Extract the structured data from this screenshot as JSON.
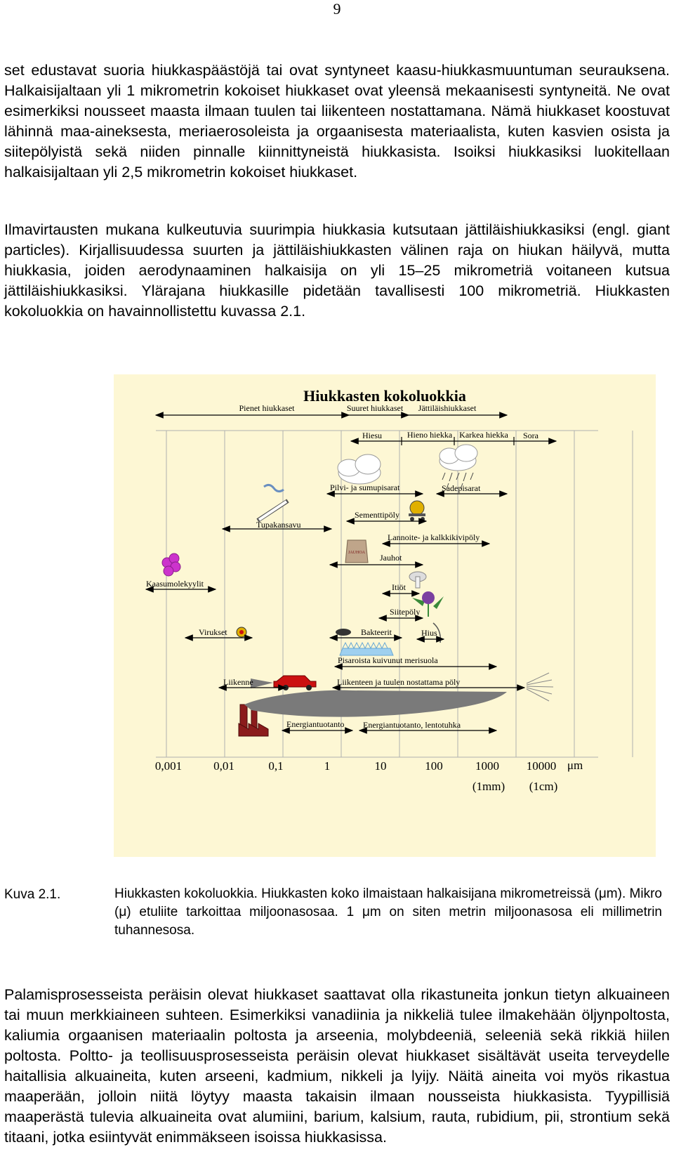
{
  "page_number": "9",
  "paragraphs": {
    "p1": "set edustavat suoria hiukkaspäästöjä tai ovat syntyneet kaasu-hiukkasmuuntuman seurauksena. Halkaisijaltaan yli 1 mikrometrin kokoiset hiukkaset ovat yleensä mekaanisesti syntyneitä. Ne ovat esimerkiksi nousseet maasta ilmaan tuulen tai liikenteen nostattamana. Nämä hiukkaset koostuvat lähinnä maa-aineksesta, meriaerosoleista ja orgaanisesta materiaalista, kuten kasvien osista ja siitepölyistä sekä niiden pinnalle kiinnittyneistä hiukkasista. Isoiksi hiukkasiksi luokitellaan halkaisijaltaan yli 2,5 mikrometrin kokoiset hiukkaset.",
    "p2": "Ilmavirtausten mukana kulkeutuvia suurimpia hiukkasia kutsutaan jättiläishiukkasiksi (engl. giant particles). Kirjallisuudessa suurten ja jättiläishiukkasten välinen raja on hiukan häilyvä, mutta hiukkasia, joiden aerodynaaminen halkaisija on yli 15–25 mikrometriä voitaneen kutsua jättiläishiukkasiksi. Ylärajana hiukkasille pidetään tavallisesti 100 mikrometriä. Hiukkasten kokoluokkia on havainnollistettu kuvassa 2.1.",
    "p3": "Palamisprosesseista peräisin olevat hiukkaset saattavat olla rikastuneita jonkun tietyn alkuaineen tai muun merkkiaineen suhteen. Esimerkiksi vanadiinia ja nikkeliä tulee ilmakehään öljynpoltosta, kaliumia orgaanisen materiaalin poltosta ja arseenia, molybdeeniä, seleeniä sekä rikkiä hiilen poltosta. Poltto- ja teollisuusprosesseista peräisin olevat hiukkaset sisältävät useita terveydelle haitallisia alkuaineita, kuten arseeni, kadmium, nikkeli ja lyijy. Näitä aineita voi myös rikastua maaperään, jolloin niitä löytyy maasta takaisin ilmaan nousseista hiukkasista. Tyypillisiä maaperästä tulevia alkuaineita ovat alumiini, barium, kalsium, rauta, rubidium, pii, strontium sekä titaani, jotka esiintyvät enimmäkseen isoissa hiukkasissa."
  },
  "figure": {
    "title": "Hiukkasten kokoluokkia",
    "categories": [
      "Pienet hiukkaset",
      "Suuret hiukkaset",
      "Jättiläishiukkaset"
    ],
    "soil": [
      "Hiesu",
      "Hieno hiekka",
      "Karkea hiekka",
      "Sora"
    ],
    "items": {
      "pilvi": "Pilvi- ja sumupisarat",
      "sade": "Sadepisarat",
      "sementti": "Sementtipöly",
      "tupakansavu": "Tupakansavu",
      "lannoite": "Lannoite- ja kalkkikivipöly",
      "jauhot": "Jauhot",
      "jauhoa_bag": "JAUHOA",
      "kaasu": "Kaasumolekyylit",
      "itiot": "Itiöt",
      "siitepoly": "Siitepöly",
      "virukset": "Virukset",
      "bakteerit": "Bakteerit",
      "hius": "Hius",
      "merisuola": "Pisaroista kuivunut merisuola",
      "liikenne": "Liikenne",
      "liikenne_poly": "Liikenteen ja tuulen nostattama pöly",
      "energia": "Energiantuotanto",
      "lentotuhka": "Energiantuotanto, lentotuhka"
    },
    "axis_ticks": [
      "0,001",
      "0,01",
      "0,1",
      "1",
      "10",
      "100",
      "1000",
      "10000"
    ],
    "axis_unit": "μm",
    "axis_sub": [
      "(1mm)",
      "(1cm)"
    ],
    "colors": {
      "background": "#fdf7d4",
      "grid": "#b0b0b0",
      "plume": "#7a7a7a",
      "factory": "#8b1c1c",
      "car": "#cc1111",
      "molecule": "#cc33cc"
    }
  },
  "caption": {
    "label": "Kuva 2.1.",
    "text": "Hiukkasten kokoluokkia. Hiukkasten koko ilmaistaan halkaisijana mikrometreissä (μm). Mikro (μ) etuliite tarkoittaa miljoonasosaa. 1 μm on siten metrin miljoonasosa eli millimetrin tuhannesosa."
  }
}
